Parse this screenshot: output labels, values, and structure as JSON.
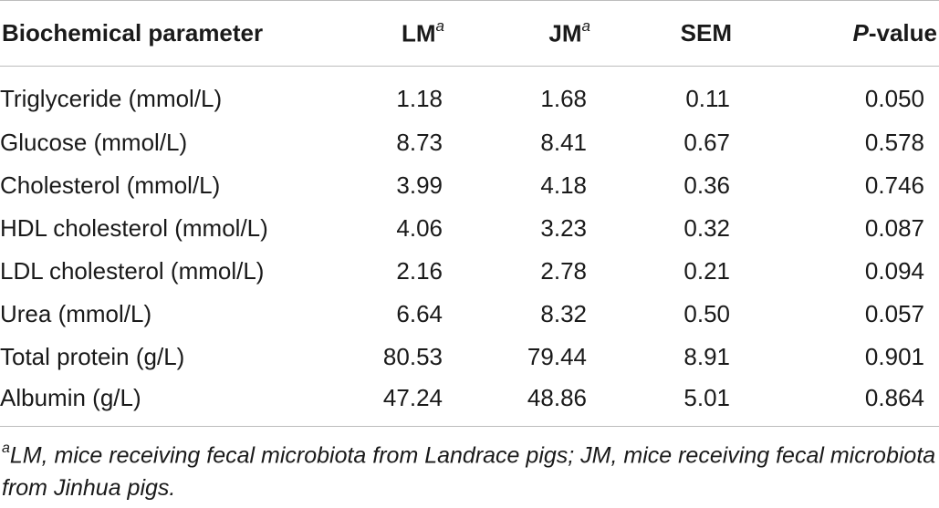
{
  "table": {
    "headers": {
      "parameter": "Biochemical parameter",
      "lm": "LM",
      "lm_mark": "a",
      "jm": "JM",
      "jm_mark": "a",
      "sem": "SEM",
      "p_italic": "P",
      "p_rest": "-value"
    },
    "rows": [
      {
        "parameter": "Triglyceride (mmol/L)",
        "lm": "1.18",
        "jm": "1.68",
        "sem": "0.11",
        "p": "0.050"
      },
      {
        "parameter": "Glucose (mmol/L)",
        "lm": "8.73",
        "jm": "8.41",
        "sem": "0.67",
        "p": "0.578"
      },
      {
        "parameter": "Cholesterol (mmol/L)",
        "lm": "3.99",
        "jm": "4.18",
        "sem": "0.36",
        "p": "0.746"
      },
      {
        "parameter": "HDL cholesterol (mmol/L)",
        "lm": "4.06",
        "jm": "3.23",
        "sem": "0.32",
        "p": "0.087"
      },
      {
        "parameter": "LDL cholesterol (mmol/L)",
        "lm": "2.16",
        "jm": "2.78",
        "sem": "0.21",
        "p": "0.094"
      },
      {
        "parameter": "Urea (mmol/L)",
        "lm": "6.64",
        "jm": "8.32",
        "sem": "0.50",
        "p": "0.057"
      },
      {
        "parameter": "Total protein (g/L)",
        "lm": "80.53",
        "jm": "79.44",
        "sem": "8.91",
        "p": "0.901"
      },
      {
        "parameter": "Albumin (g/L)",
        "lm": "47.24",
        "jm": "48.86",
        "sem": "5.01",
        "p": "0.864"
      }
    ]
  },
  "footnote": {
    "mark": "a",
    "text": "LM, mice receiving fecal microbiota from Landrace pigs; JM, mice receiving fecal microbiota from Jinhua pigs."
  }
}
